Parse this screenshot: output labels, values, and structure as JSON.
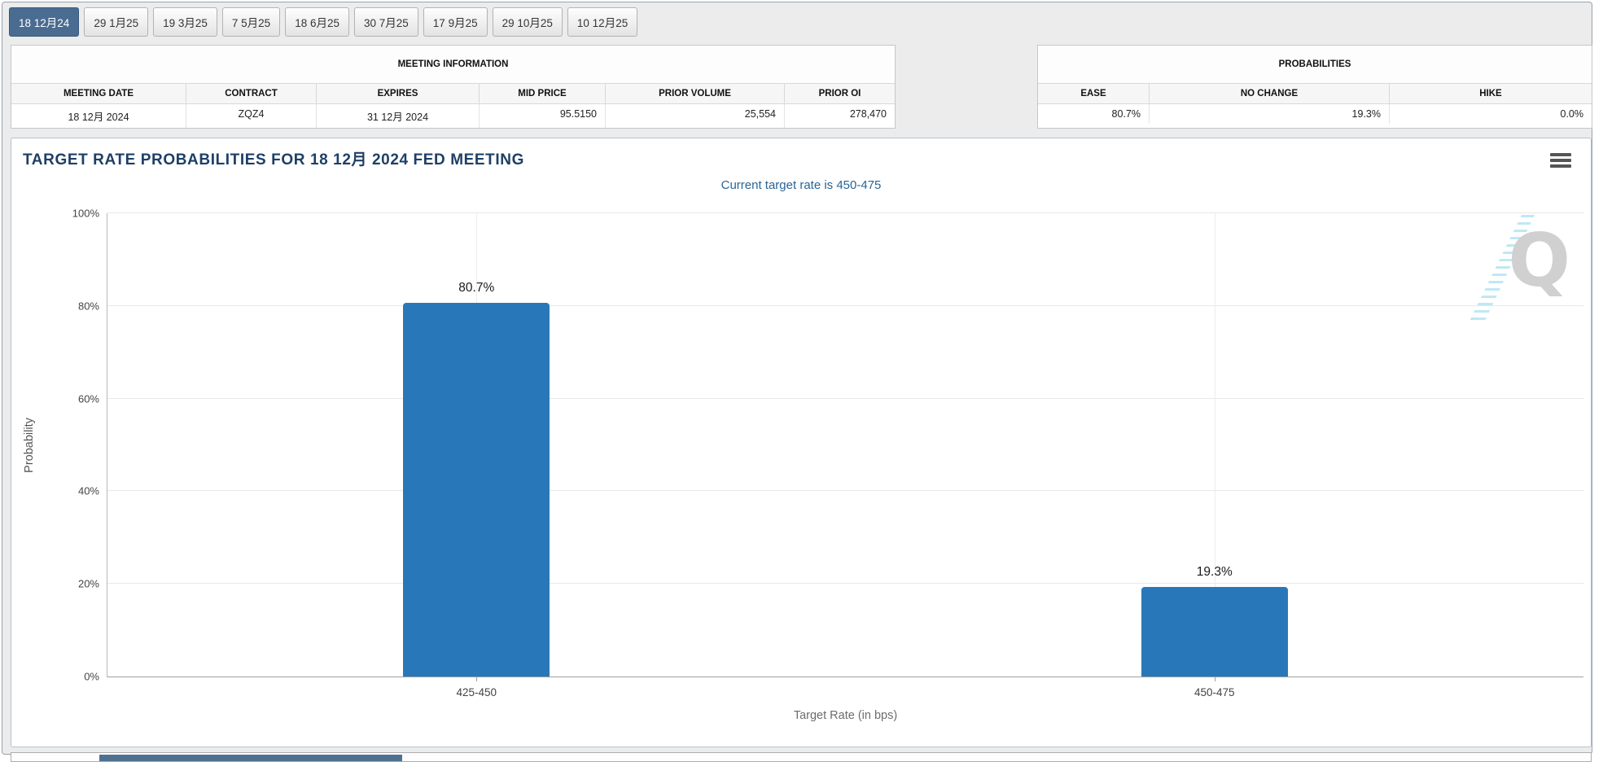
{
  "tabs": [
    {
      "label": "18 12月24",
      "selected": true
    },
    {
      "label": "29 1月25",
      "selected": false
    },
    {
      "label": "19 3月25",
      "selected": false
    },
    {
      "label": "7 5月25",
      "selected": false
    },
    {
      "label": "18 6月25",
      "selected": false
    },
    {
      "label": "30 7月25",
      "selected": false
    },
    {
      "label": "17 9月25",
      "selected": false
    },
    {
      "label": "29 10月25",
      "selected": false
    },
    {
      "label": "10 12月25",
      "selected": false
    }
  ],
  "meeting_information": {
    "title": "MEETING INFORMATION",
    "columns": [
      "MEETING DATE",
      "CONTRACT",
      "EXPIRES",
      "MID PRICE",
      "PRIOR VOLUME",
      "PRIOR OI"
    ],
    "row": [
      "18 12月 2024",
      "ZQZ4",
      "31 12月 2024",
      "95.5150",
      "25,554",
      "278,470"
    ]
  },
  "probabilities": {
    "title": "PROBABILITIES",
    "columns": [
      "EASE",
      "NO CHANGE",
      "HIKE"
    ],
    "row": [
      "80.7%",
      "19.3%",
      "0.0%"
    ]
  },
  "chart_data": {
    "type": "bar",
    "title": "TARGET RATE PROBABILITIES FOR 18 12月 2024 FED MEETING",
    "subtitle": "Current target rate is 450-475",
    "categories": [
      "425-450",
      "450-475"
    ],
    "values": [
      80.7,
      19.3
    ],
    "value_labels": [
      "80.7%",
      "19.3%"
    ],
    "xlabel": "Target Rate (in bps)",
    "ylabel": "Probability",
    "ylim": [
      0,
      100
    ],
    "yticks": [
      "0%",
      "20%",
      "40%",
      "60%",
      "80%",
      "100%"
    ],
    "grid": true,
    "legend": false,
    "bar_color": "#2878b9"
  },
  "watermark": {
    "letter": "Q"
  },
  "colors": {
    "selected_tab": "#4a6c90",
    "bar": "#2878b9",
    "chart_title": "#1e3f66",
    "chart_subtitle": "#2a6496"
  }
}
